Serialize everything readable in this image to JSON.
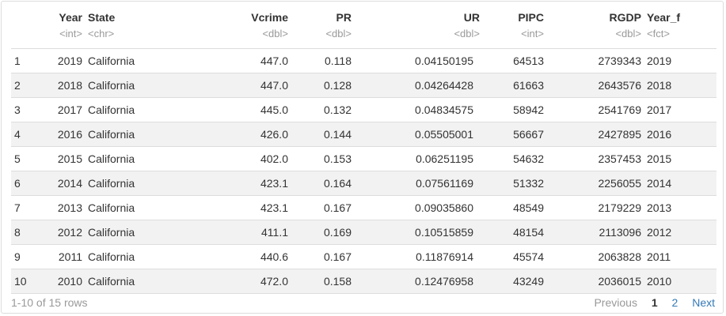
{
  "table": {
    "columns": [
      {
        "name": "",
        "type": ""
      },
      {
        "name": "Year",
        "type": "<int>"
      },
      {
        "name": "State",
        "type": "<chr>"
      },
      {
        "name": "Vcrime",
        "type": "<dbl>"
      },
      {
        "name": "PR",
        "type": "<dbl>"
      },
      {
        "name": "UR",
        "type": "<dbl>"
      },
      {
        "name": "PIPC",
        "type": "<int>"
      },
      {
        "name": "RGDP",
        "type": "<dbl>"
      },
      {
        "name": "Year_f",
        "type": "<fct>"
      }
    ],
    "rows": [
      [
        "1",
        "2019",
        "California",
        "447.0",
        "0.118",
        "0.04150195",
        "64513",
        "2739343",
        "2019"
      ],
      [
        "2",
        "2018",
        "California",
        "447.0",
        "0.128",
        "0.04264428",
        "61663",
        "2643576",
        "2018"
      ],
      [
        "3",
        "2017",
        "California",
        "445.0",
        "0.132",
        "0.04834575",
        "58942",
        "2541769",
        "2017"
      ],
      [
        "4",
        "2016",
        "California",
        "426.0",
        "0.144",
        "0.05505001",
        "56667",
        "2427895",
        "2016"
      ],
      [
        "5",
        "2015",
        "California",
        "402.0",
        "0.153",
        "0.06251195",
        "54632",
        "2357453",
        "2015"
      ],
      [
        "6",
        "2014",
        "California",
        "423.1",
        "0.164",
        "0.07561169",
        "51332",
        "2256055",
        "2014"
      ],
      [
        "7",
        "2013",
        "California",
        "423.1",
        "0.167",
        "0.09035860",
        "48549",
        "2179229",
        "2013"
      ],
      [
        "8",
        "2012",
        "California",
        "411.1",
        "0.169",
        "0.10515859",
        "48154",
        "2113096",
        "2012"
      ],
      [
        "9",
        "2011",
        "California",
        "440.6",
        "0.167",
        "0.11876914",
        "45574",
        "2063828",
        "2011"
      ],
      [
        "10",
        "2010",
        "California",
        "472.0",
        "0.158",
        "0.12476958",
        "43249",
        "2036015",
        "2010"
      ]
    ]
  },
  "footer": {
    "row_summary": "1-10 of 15 rows",
    "previous": "Previous",
    "page1": "1",
    "page2": "2",
    "next": "Next"
  }
}
